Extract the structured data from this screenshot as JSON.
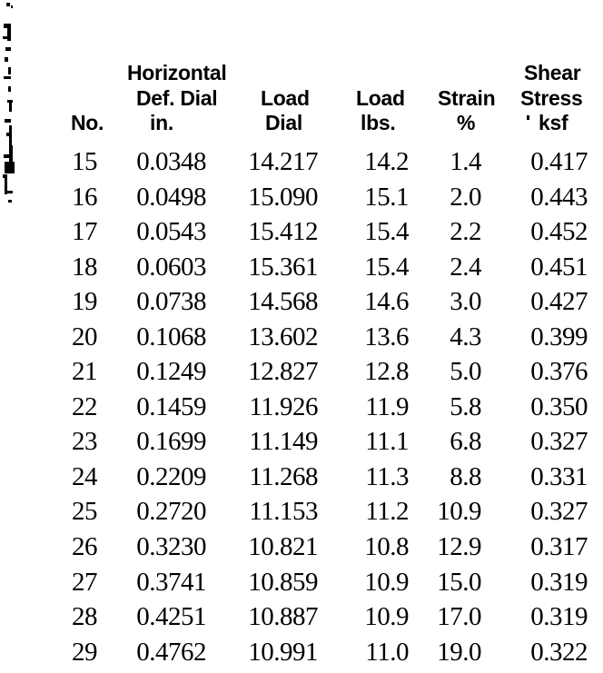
{
  "table": {
    "headers": {
      "no_line3": "No.",
      "col2_line1": "Horizontal",
      "col2_line2": "Def. Dial",
      "col2_line3": "in.",
      "col3_line2": "Load",
      "col3_line3": "Dial",
      "col4_line2": "Load",
      "col4_line3": "lbs.",
      "col5_line2": "Strain",
      "col5_line3": "%",
      "col6_line1": "Shear",
      "col6_line2": "Stress",
      "col6_line3": "ksf"
    },
    "columns": [
      "No.",
      "Horizontal Def. Dial in.",
      "Load Dial",
      "Load lbs.",
      "Strain %",
      "Shear Stress ksf"
    ],
    "rows": [
      {
        "no": "15",
        "def_dial": "0.0348",
        "load_dial": "14.217",
        "load_lbs": "14.2",
        "strain": "1.4",
        "shear": "0.417"
      },
      {
        "no": "16",
        "def_dial": "0.0498",
        "load_dial": "15.090",
        "load_lbs": "15.1",
        "strain": "2.0",
        "shear": "0.443"
      },
      {
        "no": "17",
        "def_dial": "0.0543",
        "load_dial": "15.412",
        "load_lbs": "15.4",
        "strain": "2.2",
        "shear": "0.452"
      },
      {
        "no": "18",
        "def_dial": "0.0603",
        "load_dial": "15.361",
        "load_lbs": "15.4",
        "strain": "2.4",
        "shear": "0.451"
      },
      {
        "no": "19",
        "def_dial": "0.0738",
        "load_dial": "14.568",
        "load_lbs": "14.6",
        "strain": "3.0",
        "shear": "0.427"
      },
      {
        "no": "20",
        "def_dial": "0.1068",
        "load_dial": "13.602",
        "load_lbs": "13.6",
        "strain": "4.3",
        "shear": "0.399"
      },
      {
        "no": "21",
        "def_dial": "0.1249",
        "load_dial": "12.827",
        "load_lbs": "12.8",
        "strain": "5.0",
        "shear": "0.376"
      },
      {
        "no": "22",
        "def_dial": "0.1459",
        "load_dial": "11.926",
        "load_lbs": "11.9",
        "strain": "5.8",
        "shear": "0.350"
      },
      {
        "no": "23",
        "def_dial": "0.1699",
        "load_dial": "11.149",
        "load_lbs": "11.1",
        "strain": "6.8",
        "shear": "0.327"
      },
      {
        "no": "24",
        "def_dial": "0.2209",
        "load_dial": "11.268",
        "load_lbs": "11.3",
        "strain": "8.8",
        "shear": "0.331"
      },
      {
        "no": "25",
        "def_dial": "0.2720",
        "load_dial": "11.153",
        "load_lbs": "11.2",
        "strain": "10.9",
        "shear": "0.327"
      },
      {
        "no": "26",
        "def_dial": "0.3230",
        "load_dial": "10.821",
        "load_lbs": "10.8",
        "strain": "12.9",
        "shear": "0.317"
      },
      {
        "no": "27",
        "def_dial": "0.3741",
        "load_dial": "10.859",
        "load_lbs": "10.9",
        "strain": "15.0",
        "shear": "0.319"
      },
      {
        "no": "28",
        "def_dial": "0.4251",
        "load_dial": "10.887",
        "load_lbs": "10.9",
        "strain": "17.0",
        "shear": "0.319"
      },
      {
        "no": "29",
        "def_dial": "0.4762",
        "load_dial": "10.991",
        "load_lbs": "11.0",
        "strain": "19.0",
        "shear": "0.322"
      }
    ]
  }
}
